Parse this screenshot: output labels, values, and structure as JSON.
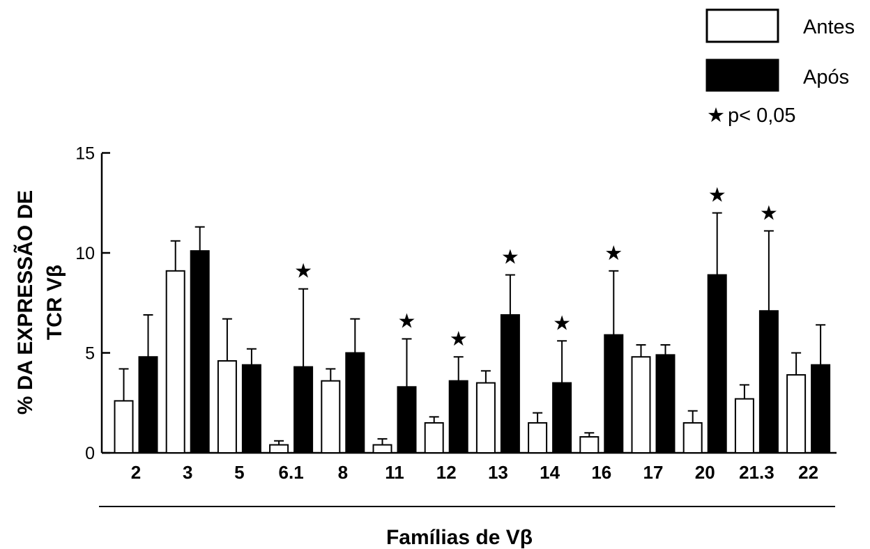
{
  "chart_data": {
    "type": "bar",
    "xlabel": "Famílias de Vβ",
    "ylabel_lines": [
      "% DA EXPRESSÃO DE",
      "TCR Vβ"
    ],
    "ylim": [
      0,
      15
    ],
    "yticks": [
      "0",
      "5",
      "10",
      "15"
    ],
    "categories": [
      "2",
      "3",
      "5",
      "6.1",
      "8",
      "11",
      "12",
      "13",
      "14",
      "16",
      "17",
      "20",
      "21.3",
      "22"
    ],
    "series": [
      {
        "name": "Antes",
        "fill": "#ffffff",
        "values": [
          2.6,
          9.1,
          4.6,
          0.4,
          3.6,
          0.4,
          1.5,
          3.5,
          1.5,
          0.8,
          4.8,
          1.5,
          2.7,
          3.9
        ],
        "errors": [
          1.6,
          1.5,
          2.1,
          0.2,
          0.6,
          0.3,
          0.3,
          0.6,
          0.5,
          0.2,
          0.6,
          0.6,
          0.7,
          1.1
        ]
      },
      {
        "name": "Após",
        "fill": "#000000",
        "values": [
          4.8,
          10.1,
          4.4,
          4.3,
          5.0,
          3.3,
          3.6,
          6.9,
          3.5,
          5.9,
          4.9,
          8.9,
          7.1,
          4.4
        ],
        "errors": [
          2.1,
          1.2,
          0.8,
          3.9,
          1.7,
          2.4,
          1.2,
          2.0,
          2.1,
          3.2,
          0.5,
          3.1,
          4.0,
          2.0
        ]
      }
    ],
    "significant": [
      false,
      false,
      false,
      true,
      false,
      true,
      true,
      true,
      true,
      true,
      false,
      true,
      true,
      false
    ],
    "legend": {
      "position": "top-right",
      "antes": "Antes",
      "apos": "Após",
      "significance": "p< 0,05",
      "star_glyph": "★"
    }
  }
}
